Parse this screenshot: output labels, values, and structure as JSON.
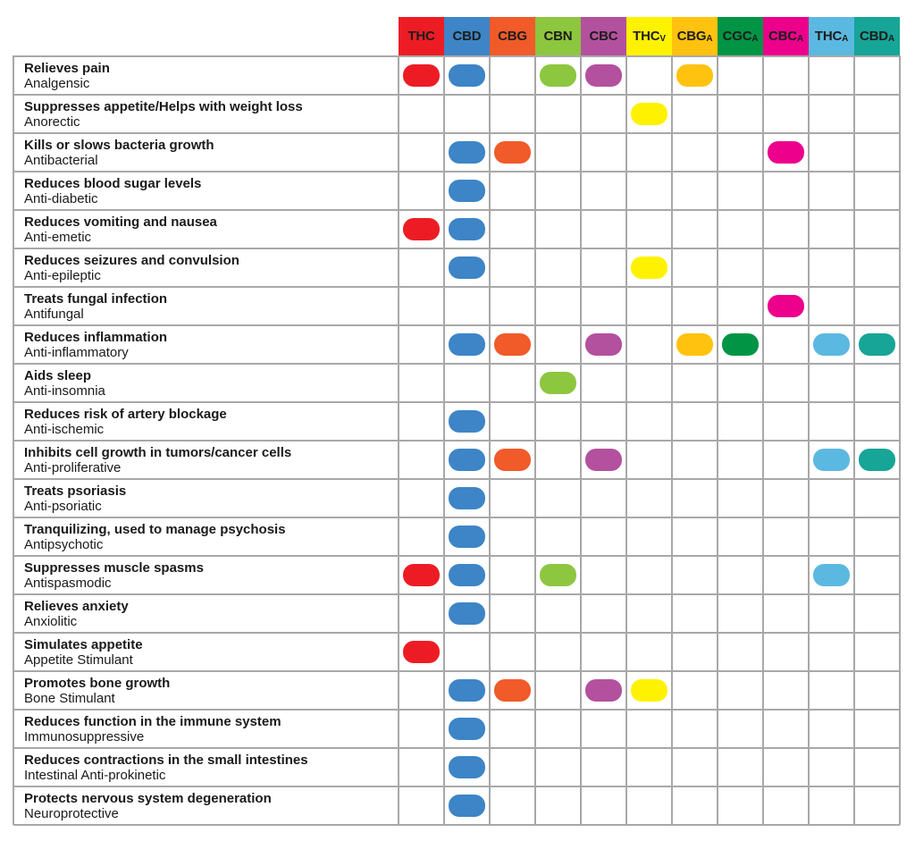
{
  "columns": [
    {
      "id": "thc",
      "main": "THC",
      "sub": "",
      "bg": "#ed1c24",
      "fg": "#1d1d1b"
    },
    {
      "id": "cbd",
      "main": "CBD",
      "sub": "",
      "bg": "#3d85c6",
      "fg": "#1d1d1b"
    },
    {
      "id": "cbg",
      "main": "CBG",
      "sub": "",
      "bg": "#f15a29",
      "fg": "#1d1d1b"
    },
    {
      "id": "cbn",
      "main": "CBN",
      "sub": "",
      "bg": "#8dc63f",
      "fg": "#1d1d1b"
    },
    {
      "id": "cbc",
      "main": "CBC",
      "sub": "",
      "bg": "#b3519e",
      "fg": "#1d1d1b"
    },
    {
      "id": "thcv",
      "main": "THC",
      "sub": "V",
      "bg": "#fff200",
      "fg": "#1d1d1b"
    },
    {
      "id": "cbga",
      "main": "CBG",
      "sub": "A",
      "bg": "#ffc20e",
      "fg": "#1d1d1b"
    },
    {
      "id": "cgca",
      "main": "CGC",
      "sub": "A",
      "bg": "#009444",
      "fg": "#1d1d1b"
    },
    {
      "id": "cbca",
      "main": "CBC",
      "sub": "A",
      "bg": "#ec008c",
      "fg": "#1d1d1b"
    },
    {
      "id": "thca",
      "main": "THC",
      "sub": "A",
      "bg": "#5bb8e0",
      "fg": "#1d1d1b"
    },
    {
      "id": "cbda",
      "main": "CBD",
      "sub": "A",
      "bg": "#16a596",
      "fg": "#1d1d1b"
    }
  ],
  "rows": [
    {
      "effect": "Relieves pain",
      "term": "Analgensic",
      "marks": [
        1,
        1,
        0,
        1,
        1,
        0,
        1,
        0,
        0,
        0,
        0
      ]
    },
    {
      "effect": "Suppresses appetite/Helps with weight loss",
      "term": "Anorectic",
      "marks": [
        0,
        0,
        0,
        0,
        0,
        1,
        0,
        0,
        0,
        0,
        0
      ]
    },
    {
      "effect": "Kills or slows bacteria growth",
      "term": "Antibacterial",
      "marks": [
        0,
        1,
        1,
        0,
        0,
        0,
        0,
        0,
        1,
        0,
        0
      ]
    },
    {
      "effect": "Reduces blood sugar levels",
      "term": "Anti-diabetic",
      "marks": [
        0,
        1,
        0,
        0,
        0,
        0,
        0,
        0,
        0,
        0,
        0
      ]
    },
    {
      "effect": "Reduces vomiting and nausea",
      "term": "Anti-emetic",
      "marks": [
        1,
        1,
        0,
        0,
        0,
        0,
        0,
        0,
        0,
        0,
        0
      ]
    },
    {
      "effect": "Reduces seizures and convulsion",
      "term": "Anti-epileptic",
      "marks": [
        0,
        1,
        0,
        0,
        0,
        1,
        0,
        0,
        0,
        0,
        0
      ]
    },
    {
      "effect": "Treats fungal infection",
      "term": "Antifungal",
      "marks": [
        0,
        0,
        0,
        0,
        0,
        0,
        0,
        0,
        1,
        0,
        0
      ]
    },
    {
      "effect": "Reduces inflammation",
      "term": "Anti-inflammatory",
      "marks": [
        0,
        1,
        1,
        0,
        1,
        0,
        1,
        1,
        0,
        1,
        1
      ]
    },
    {
      "effect": "Aids sleep",
      "term": "Anti-insomnia",
      "marks": [
        0,
        0,
        0,
        1,
        0,
        0,
        0,
        0,
        0,
        0,
        0
      ]
    },
    {
      "effect": "Reduces risk of artery blockage",
      "term": "Anti-ischemic",
      "marks": [
        0,
        1,
        0,
        0,
        0,
        0,
        0,
        0,
        0,
        0,
        0
      ]
    },
    {
      "effect": "Inhibits cell growth in tumors/cancer cells",
      "term": "Anti-proliferative",
      "marks": [
        0,
        1,
        1,
        0,
        1,
        0,
        0,
        0,
        0,
        1,
        1
      ]
    },
    {
      "effect": "Treats psoriasis",
      "term": "Anti-psoriatic",
      "marks": [
        0,
        1,
        0,
        0,
        0,
        0,
        0,
        0,
        0,
        0,
        0
      ]
    },
    {
      "effect": "Tranquilizing, used to manage psychosis",
      "term": "Antipsychotic",
      "marks": [
        0,
        1,
        0,
        0,
        0,
        0,
        0,
        0,
        0,
        0,
        0
      ]
    },
    {
      "effect": "Suppresses muscle spasms",
      "term": "Antispasmodic",
      "marks": [
        1,
        1,
        0,
        1,
        0,
        0,
        0,
        0,
        0,
        1,
        0
      ]
    },
    {
      "effect": "Relieves anxiety",
      "term": "Anxiolitic",
      "marks": [
        0,
        1,
        0,
        0,
        0,
        0,
        0,
        0,
        0,
        0,
        0
      ]
    },
    {
      "effect": "Simulates appetite",
      "term": "Appetite Stimulant",
      "marks": [
        1,
        0,
        0,
        0,
        0,
        0,
        0,
        0,
        0,
        0,
        0
      ]
    },
    {
      "effect": "Promotes bone growth",
      "term": "Bone Stimulant",
      "marks": [
        0,
        1,
        1,
        0,
        1,
        1,
        0,
        0,
        0,
        0,
        0
      ]
    },
    {
      "effect": "Reduces function in the immune system",
      "term": "Immunosuppressive",
      "marks": [
        0,
        1,
        0,
        0,
        0,
        0,
        0,
        0,
        0,
        0,
        0
      ]
    },
    {
      "effect": "Reduces contractions in the small intestines",
      "term": "Intestinal Anti-prokinetic",
      "marks": [
        0,
        1,
        0,
        0,
        0,
        0,
        0,
        0,
        0,
        0,
        0
      ]
    },
    {
      "effect": "Protects nervous system degeneration",
      "term": "Neuroprotective",
      "marks": [
        0,
        1,
        0,
        0,
        0,
        0,
        0,
        0,
        0,
        0,
        0
      ]
    }
  ]
}
